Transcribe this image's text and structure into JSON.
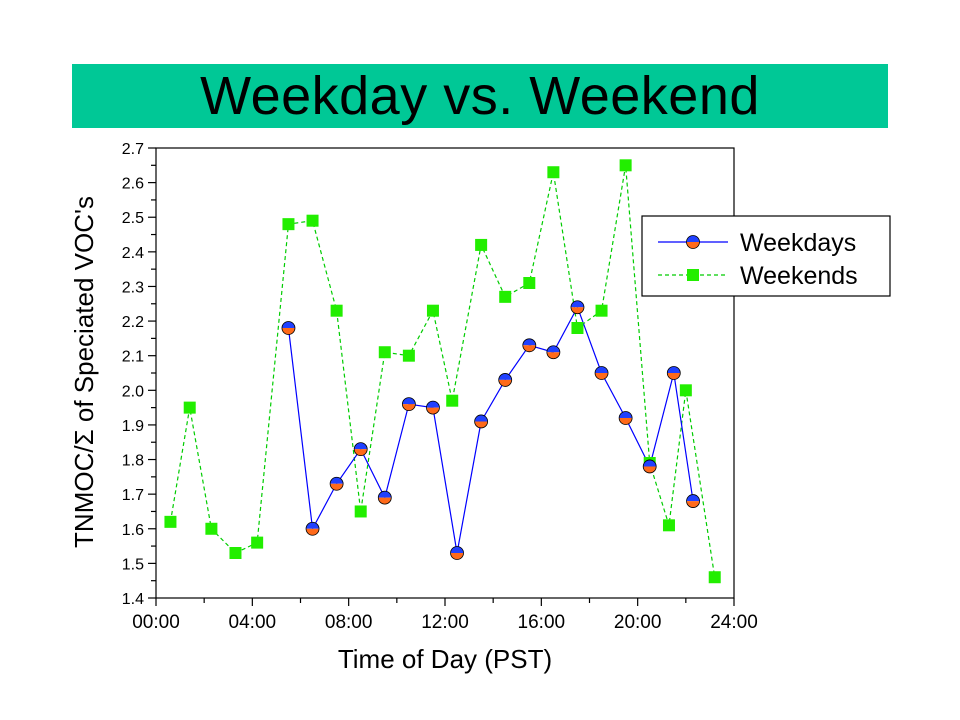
{
  "slide": {
    "title": "Weekday vs. Weekend",
    "title_bar_color": "#00c896"
  },
  "chart_data": {
    "type": "line",
    "xlabel": "Time of Day (PST)",
    "ylabel": "TNMOC/Σ of Speciated VOC's",
    "xlim": [
      0,
      24
    ],
    "ylim": [
      1.4,
      2.7
    ],
    "x_ticks": [
      0,
      4,
      8,
      12,
      16,
      20,
      24
    ],
    "x_tick_labels": [
      "00:00",
      "04:00",
      "08:00",
      "12:00",
      "16:00",
      "20:00",
      "24:00"
    ],
    "y_ticks": [
      1.4,
      1.5,
      1.6,
      1.7,
      1.8,
      1.9,
      2.0,
      2.1,
      2.2,
      2.3,
      2.4,
      2.5,
      2.6,
      2.7
    ],
    "y_tick_labels": [
      "1.4",
      "1.5",
      "1.6",
      "1.7",
      "1.8",
      "1.9",
      "2.0",
      "2.1",
      "2.2",
      "2.3",
      "2.4",
      "2.5",
      "2.6",
      "2.7"
    ],
    "grid": false,
    "legend_position": "top-right",
    "series": [
      {
        "name": "Weekdays",
        "style": "solid line, circle markers",
        "line_color": "#0000ff",
        "marker_top_color": "#2040ff",
        "marker_bottom_color": "#ff6a1a",
        "x": [
          5.5,
          6.5,
          7.5,
          8.5,
          9.5,
          10.5,
          11.5,
          12.5,
          13.5,
          14.5,
          15.5,
          16.5,
          17.5,
          18.5,
          19.5,
          20.5,
          21.5,
          22.3
        ],
        "values": [
          2.18,
          1.6,
          1.73,
          1.83,
          1.69,
          1.96,
          1.95,
          1.53,
          1.91,
          2.03,
          2.13,
          2.11,
          2.24,
          2.05,
          1.92,
          1.78,
          2.05,
          1.68
        ]
      },
      {
        "name": "Weekends",
        "style": "dashed line, square markers",
        "line_color": "#00cc00",
        "marker_color": "#22ee00",
        "x": [
          0.6,
          1.4,
          2.3,
          3.3,
          4.2,
          5.5,
          6.5,
          7.5,
          8.5,
          9.5,
          10.5,
          11.5,
          12.3,
          13.5,
          14.5,
          15.5,
          16.5,
          17.5,
          18.5,
          19.5,
          20.5,
          21.3,
          22.0,
          23.2
        ],
        "values": [
          1.62,
          1.95,
          1.6,
          1.53,
          1.56,
          2.48,
          2.49,
          2.23,
          1.65,
          2.11,
          2.1,
          2.23,
          1.97,
          2.42,
          2.27,
          2.31,
          2.63,
          2.18,
          2.23,
          2.65,
          1.79,
          1.61,
          2.0,
          1.46
        ]
      }
    ]
  }
}
